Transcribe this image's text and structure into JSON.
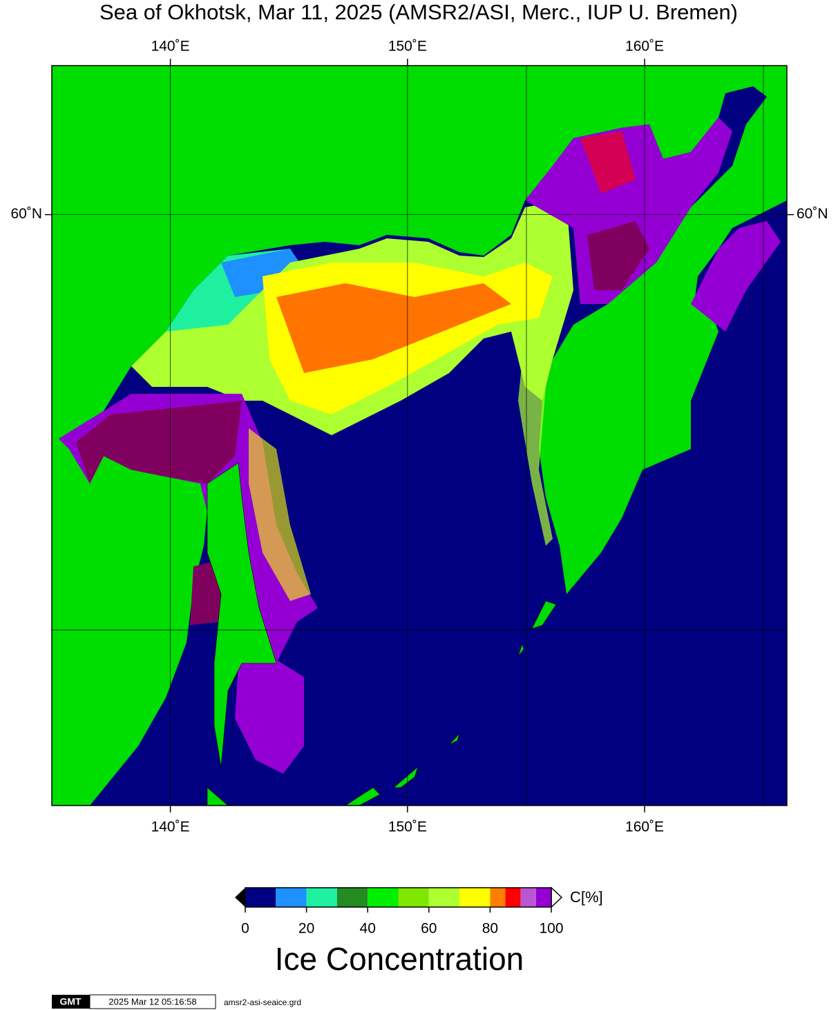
{
  "title": "Sea of Okhotsk, Mar 11, 2025 (AMSR2/ASI, Merc., IUP U. Bremen)",
  "map": {
    "projection": "mercator",
    "xlim": [
      135,
      166
    ],
    "ylim": [
      45,
      63
    ],
    "xticks": [
      {
        "value": 140,
        "label": "140˚E"
      },
      {
        "value": 150,
        "label": "150˚E"
      },
      {
        "value": 160,
        "label": "160˚E"
      }
    ],
    "yticks": [
      {
        "value": 60,
        "label": "60˚N"
      }
    ],
    "grid": true
  },
  "colorbar": {
    "bins": [
      0,
      10,
      20,
      30,
      40,
      50,
      60,
      70,
      80,
      85,
      90,
      95,
      100
    ],
    "colors": [
      "#000080",
      "#1e90ff",
      "#1ef0a0",
      "#228b22",
      "#00ee00",
      "#7fe600",
      "#adff2f",
      "#ffff00",
      "#ff7f00",
      "#ff0000",
      "#ba55d3",
      "#9400d3"
    ],
    "ticks": [
      0,
      20,
      40,
      60,
      80,
      100
    ],
    "unit": "C[%]",
    "label": "Ice Concentration"
  },
  "footer": {
    "logo": "GMT",
    "timestamp": "2025 Mar 12 05:16:58",
    "file": "amsr2-asi-seaice.grd"
  }
}
